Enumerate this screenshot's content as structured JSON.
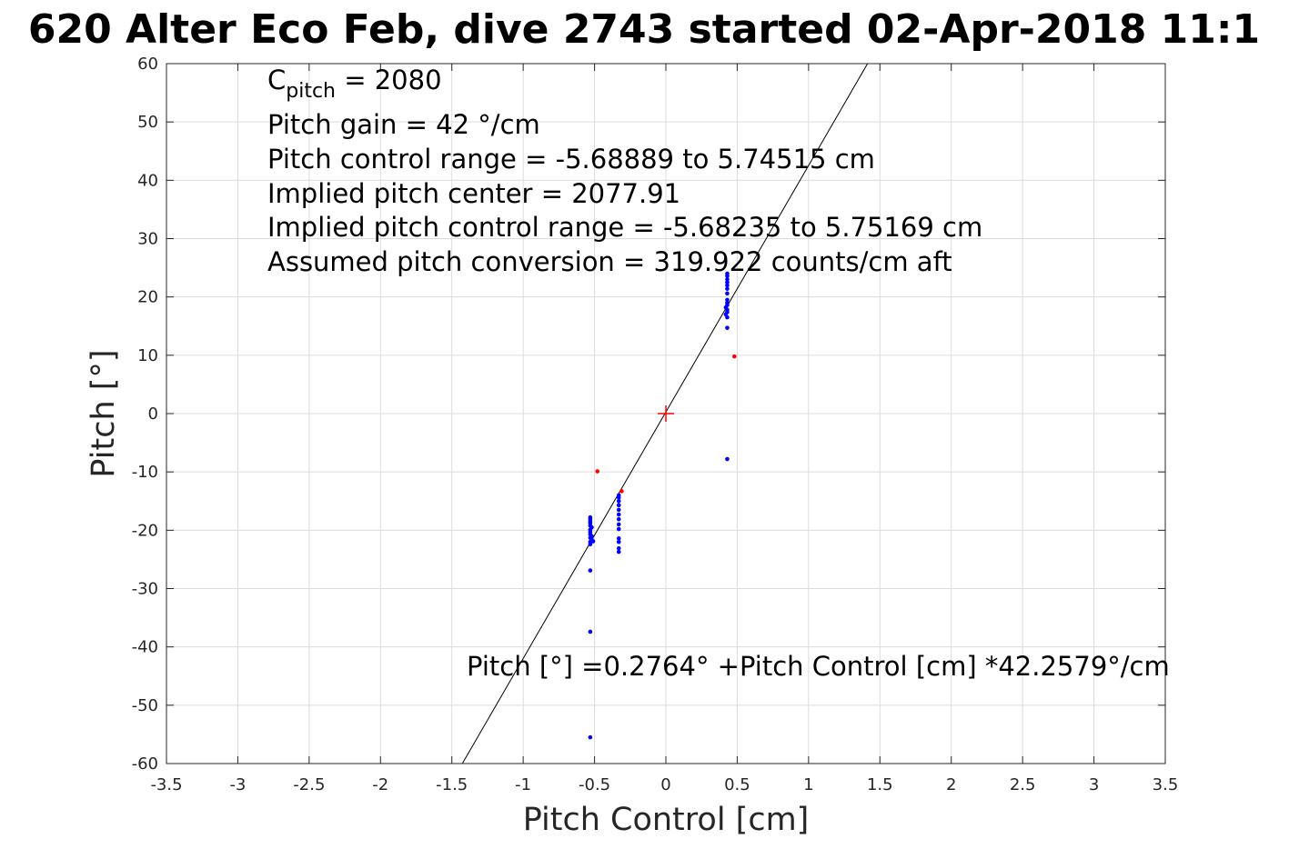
{
  "chart_data": {
    "type": "scatter",
    "title": "620 Alter Eco Feb, dive 2743 started 02-Apr-2018 11:1",
    "xlabel": "Pitch Control [cm]",
    "ylabel": "Pitch [°]",
    "xlim": [
      -3.5,
      3.5
    ],
    "ylim": [
      -60,
      60
    ],
    "grid": true,
    "x_ticks": [
      -3.5,
      -3,
      -2.5,
      -2,
      -1.5,
      -1,
      -0.5,
      0,
      0.5,
      1,
      1.5,
      2,
      2.5,
      3,
      3.5
    ],
    "x_tick_labels": [
      "-3.5",
      "-3",
      "-2.5",
      "-2",
      "-1.5",
      "-1",
      "-0.5",
      "0",
      "0.5",
      "1",
      "1.5",
      "2",
      "2.5",
      "3",
      "3.5"
    ],
    "y_ticks": [
      -60,
      -50,
      -40,
      -30,
      -20,
      -10,
      0,
      10,
      20,
      30,
      40,
      50,
      60
    ],
    "y_tick_labels": [
      "-60",
      "-50",
      "-40",
      "-30",
      "-20",
      "-10",
      "0",
      "10",
      "20",
      "30",
      "40",
      "50",
      "60"
    ],
    "annotations": {
      "c_pitch_base": "C",
      "c_pitch_sub": "pitch",
      "c_pitch_value": " = 2080",
      "lines": [
        "Pitch gain = 42 °/cm",
        "Pitch control range = -5.68889 to 5.74515 cm",
        "Implied pitch center = 2077.91",
        "Implied pitch control range = -5.68235 to 5.75169 cm",
        "Assumed pitch conversion = 319.922 counts/cm aft"
      ],
      "fit_label": "Pitch [°] =0.2764° +Pitch Control [cm] *42.2579°/cm"
    },
    "fit_line": {
      "intercept": 0.2764,
      "slope": 42.2579,
      "color": "#000000"
    },
    "center_marker": {
      "x": 0,
      "y": 0,
      "color": "#ff0000",
      "shape": "plus"
    },
    "series": [
      {
        "color": "#0000ff",
        "points": [
          [
            -0.53,
            -55.5
          ],
          [
            -0.53,
            -37.4
          ],
          [
            -0.53,
            -26.9
          ],
          [
            -0.53,
            -22.4
          ],
          [
            -0.53,
            -22.0
          ],
          [
            -0.52,
            -21.6
          ],
          [
            -0.53,
            -21.3
          ],
          [
            -0.52,
            -21.0
          ],
          [
            -0.53,
            -20.7
          ],
          [
            -0.53,
            -20.3
          ],
          [
            -0.53,
            -19.9
          ],
          [
            -0.52,
            -19.5
          ],
          [
            -0.53,
            -19.2
          ],
          [
            -0.53,
            -18.8
          ],
          [
            -0.53,
            -18.5
          ],
          [
            -0.53,
            -18.1
          ],
          [
            -0.53,
            -17.8
          ],
          [
            -0.51,
            -21.9
          ],
          [
            -0.33,
            -23.7
          ],
          [
            -0.33,
            -23.1
          ],
          [
            -0.33,
            -22.0
          ],
          [
            -0.33,
            -21.4
          ],
          [
            -0.33,
            -19.8
          ],
          [
            -0.33,
            -19.0
          ],
          [
            -0.33,
            -18.1
          ],
          [
            -0.33,
            -17.3
          ],
          [
            -0.33,
            -16.5
          ],
          [
            -0.33,
            -15.7
          ],
          [
            -0.33,
            -15.0
          ],
          [
            -0.33,
            -14.4
          ],
          [
            -0.33,
            -14.0
          ],
          [
            0.43,
            -7.8
          ],
          [
            0.43,
            14.7
          ],
          [
            0.43,
            16.5
          ],
          [
            0.42,
            17.0
          ],
          [
            0.43,
            17.4
          ],
          [
            0.43,
            17.8
          ],
          [
            0.42,
            18.2
          ],
          [
            0.43,
            18.6
          ],
          [
            0.43,
            19.0
          ],
          [
            0.43,
            19.5
          ],
          [
            0.43,
            20.6
          ],
          [
            0.43,
            21.4
          ],
          [
            0.43,
            22.0
          ],
          [
            0.43,
            22.5
          ],
          [
            0.43,
            23.0
          ],
          [
            0.43,
            23.6
          ],
          [
            0.43,
            24.0
          ]
        ]
      },
      {
        "color": "#ff0000",
        "points": [
          [
            -0.48,
            -9.9
          ],
          [
            0.48,
            9.8
          ],
          [
            -0.31,
            -13.3
          ]
        ]
      }
    ]
  }
}
